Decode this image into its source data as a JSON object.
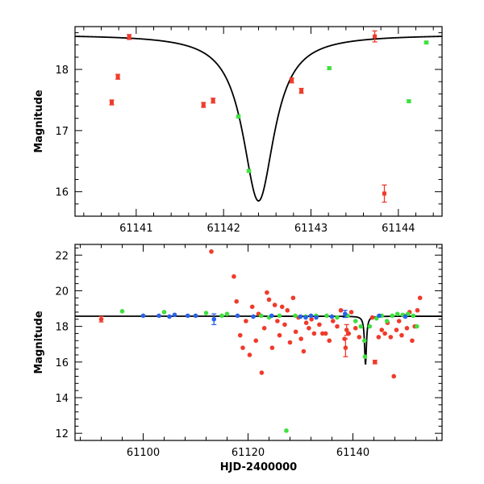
{
  "colors": {
    "red": "#f03a2a",
    "green": "#3ee03e",
    "blue": "#2a62e8",
    "axis": "#000000"
  },
  "chart_data": [
    {
      "type": "scatter",
      "title": "",
      "xlabel": "",
      "ylabel": "Magnitude",
      "xlim": [
        61140.3,
        61144.5
      ],
      "ylim": [
        18.7,
        15.6
      ],
      "y_inverted": true,
      "xticks": [
        61141,
        61142,
        61143,
        61144
      ],
      "xtick_labels": [
        "61141",
        "61142",
        "61143",
        "61144"
      ],
      "yticks": [
        16,
        17,
        18
      ],
      "ytick_labels": [
        "16",
        "17",
        "18"
      ],
      "model_curve": {
        "name": "model",
        "peak_x": 61142.4,
        "peak_mag": 15.85,
        "baseline_mag": 18.57,
        "width": 0.22
      },
      "series": [
        {
          "name": "red",
          "color_key": "red",
          "points": [
            {
              "x": 61140.72,
              "y": 17.46,
              "err": 0.04
            },
            {
              "x": 61140.79,
              "y": 17.88,
              "err": 0.04
            },
            {
              "x": 61140.92,
              "y": 18.53,
              "err": 0.04
            },
            {
              "x": 61141.77,
              "y": 17.42,
              "err": 0.04
            },
            {
              "x": 61141.88,
              "y": 17.49,
              "err": 0.04
            },
            {
              "x": 61142.78,
              "y": 17.82,
              "err": 0.04
            },
            {
              "x": 61142.89,
              "y": 17.65,
              "err": 0.04
            },
            {
              "x": 61143.73,
              "y": 18.54,
              "err": 0.09
            },
            {
              "x": 61143.84,
              "y": 15.97,
              "err": 0.14
            }
          ]
        },
        {
          "name": "green",
          "color_key": "green",
          "points": [
            {
              "x": 61142.17,
              "y": 17.23,
              "err": 0.02
            },
            {
              "x": 61142.29,
              "y": 16.34,
              "err": 0.02
            },
            {
              "x": 61143.21,
              "y": 18.02,
              "err": 0.02
            },
            {
              "x": 61144.12,
              "y": 17.48,
              "err": 0.02
            },
            {
              "x": 61144.32,
              "y": 18.44,
              "err": 0.02
            }
          ]
        }
      ]
    },
    {
      "type": "scatter",
      "title": "",
      "xlabel": "HJD-2400000",
      "ylabel": "Magnitude",
      "xlim": [
        61087,
        61157
      ],
      "ylim": [
        22.6,
        11.6
      ],
      "y_inverted": true,
      "xticks": [
        61100,
        61120,
        61140
      ],
      "xtick_labels": [
        "61100",
        "61120",
        "61140"
      ],
      "yticks": [
        12,
        14,
        16,
        18,
        20,
        22
      ],
      "ytick_labels": [
        "12",
        "14",
        "16",
        "18",
        "20",
        "22"
      ],
      "model_curve": {
        "name": "model",
        "peak_x": 61142.4,
        "peak_mag": 15.85,
        "baseline_mag": 18.57,
        "width": 0.22
      },
      "series": [
        {
          "name": "red",
          "color_key": "red",
          "points": [
            {
              "x": 61092,
              "y": 18.4,
              "err": 0.15
            },
            {
              "x": 61113,
              "y": 22.2,
              "err": 0
            },
            {
              "x": 61117.3,
              "y": 20.8,
              "err": 0
            },
            {
              "x": 61117.8,
              "y": 19.4,
              "err": 0
            },
            {
              "x": 61118.5,
              "y": 17.5,
              "err": 0
            },
            {
              "x": 61119.0,
              "y": 16.8,
              "err": 0
            },
            {
              "x": 61119.6,
              "y": 18.3,
              "err": 0
            },
            {
              "x": 61120.3,
              "y": 16.4,
              "err": 0
            },
            {
              "x": 61120.8,
              "y": 19.1,
              "err": 0
            },
            {
              "x": 61121.5,
              "y": 17.2,
              "err": 0
            },
            {
              "x": 61122.0,
              "y": 18.7,
              "err": 0
            },
            {
              "x": 61122.6,
              "y": 15.4,
              "err": 0
            },
            {
              "x": 61123.1,
              "y": 17.9,
              "err": 0
            },
            {
              "x": 61123.6,
              "y": 19.9,
              "err": 0
            },
            {
              "x": 61124.0,
              "y": 19.5,
              "err": 0
            },
            {
              "x": 61124.6,
              "y": 16.8,
              "err": 0
            },
            {
              "x": 61125.1,
              "y": 19.2,
              "err": 0
            },
            {
              "x": 61125.6,
              "y": 18.3,
              "err": 0
            },
            {
              "x": 61126.0,
              "y": 17.5,
              "err": 0
            },
            {
              "x": 61126.5,
              "y": 19.1,
              "err": 0
            },
            {
              "x": 61127.0,
              "y": 18.1,
              "err": 0
            },
            {
              "x": 61127.5,
              "y": 18.9,
              "err": 0
            },
            {
              "x": 61128.0,
              "y": 17.1,
              "err": 0
            },
            {
              "x": 61128.6,
              "y": 19.6,
              "err": 0
            },
            {
              "x": 61129.1,
              "y": 17.7,
              "err": 0
            },
            {
              "x": 61129.6,
              "y": 18.5,
              "err": 0
            },
            {
              "x": 61130.1,
              "y": 17.3,
              "err": 0
            },
            {
              "x": 61130.6,
              "y": 16.6,
              "err": 0
            },
            {
              "x": 61131.1,
              "y": 18.2,
              "err": 0
            },
            {
              "x": 61131.6,
              "y": 17.9,
              "err": 0
            },
            {
              "x": 61132.1,
              "y": 18.4,
              "err": 0
            },
            {
              "x": 61132.6,
              "y": 17.6,
              "err": 0
            },
            {
              "x": 61133.6,
              "y": 18.1,
              "err": 0
            },
            {
              "x": 61134.2,
              "y": 17.6,
              "err": 0
            },
            {
              "x": 61134.8,
              "y": 17.6,
              "err": 0
            },
            {
              "x": 61135.5,
              "y": 17.2,
              "err": 0
            },
            {
              "x": 61136.2,
              "y": 18.3,
              "err": 0
            },
            {
              "x": 61137.0,
              "y": 18.0,
              "err": 0
            },
            {
              "x": 61137.7,
              "y": 18.9,
              "err": 0
            },
            {
              "x": 61138.4,
              "y": 17.3,
              "err": 0
            },
            {
              "x": 61138.6,
              "y": 16.8,
              "err": 0.5
            },
            {
              "x": 61138.8,
              "y": 17.8,
              "err": 0.3
            },
            {
              "x": 61139.2,
              "y": 17.6,
              "err": 0
            },
            {
              "x": 61139.7,
              "y": 18.8,
              "err": 0
            },
            {
              "x": 61140.5,
              "y": 17.9,
              "err": 0
            },
            {
              "x": 61141.2,
              "y": 17.4,
              "err": 0
            },
            {
              "x": 61143.7,
              "y": 18.5,
              "err": 0
            },
            {
              "x": 61144.2,
              "y": 16.0,
              "err": 0.1
            },
            {
              "x": 61144.9,
              "y": 17.4,
              "err": 0
            },
            {
              "x": 61145.5,
              "y": 17.8,
              "err": 0
            },
            {
              "x": 61146.1,
              "y": 17.6,
              "err": 0
            },
            {
              "x": 61146.6,
              "y": 18.2,
              "err": 0
            },
            {
              "x": 61147.2,
              "y": 17.4,
              "err": 0
            },
            {
              "x": 61147.8,
              "y": 15.2,
              "err": 0
            },
            {
              "x": 61148.3,
              "y": 17.8,
              "err": 0
            },
            {
              "x": 61148.8,
              "y": 18.3,
              "err": 0
            },
            {
              "x": 61149.3,
              "y": 17.5,
              "err": 0
            },
            {
              "x": 61149.8,
              "y": 18.6,
              "err": 0
            },
            {
              "x": 61150.3,
              "y": 17.9,
              "err": 0
            },
            {
              "x": 61150.8,
              "y": 18.8,
              "err": 0
            },
            {
              "x": 61151.3,
              "y": 17.2,
              "err": 0
            },
            {
              "x": 61151.8,
              "y": 18.0,
              "err": 0
            },
            {
              "x": 61152.3,
              "y": 18.9,
              "err": 0
            },
            {
              "x": 61152.8,
              "y": 19.6,
              "err": 0
            }
          ]
        },
        {
          "name": "green",
          "color_key": "green",
          "points": [
            {
              "x": 61096,
              "y": 18.85,
              "err": 0
            },
            {
              "x": 61104,
              "y": 18.8,
              "err": 0
            },
            {
              "x": 61112,
              "y": 18.75,
              "err": 0
            },
            {
              "x": 61115,
              "y": 18.6,
              "err": 0
            },
            {
              "x": 61116,
              "y": 18.7,
              "err": 0
            },
            {
              "x": 61122.5,
              "y": 18.6,
              "err": 0
            },
            {
              "x": 61124,
              "y": 18.5,
              "err": 0
            },
            {
              "x": 61126,
              "y": 18.6,
              "err": 0
            },
            {
              "x": 61127.3,
              "y": 12.15,
              "err": 0
            },
            {
              "x": 61129,
              "y": 18.6,
              "err": 0
            },
            {
              "x": 61131,
              "y": 18.55,
              "err": 0
            },
            {
              "x": 61133,
              "y": 18.6,
              "err": 0
            },
            {
              "x": 61135,
              "y": 18.6,
              "err": 0
            },
            {
              "x": 61137,
              "y": 18.5,
              "err": 0
            },
            {
              "x": 61139,
              "y": 18.6,
              "err": 0
            },
            {
              "x": 61140.5,
              "y": 18.3,
              "err": 0
            },
            {
              "x": 61141.5,
              "y": 18.0,
              "err": 0
            },
            {
              "x": 61142.2,
              "y": 17.2,
              "err": 0
            },
            {
              "x": 61142.3,
              "y": 16.3,
              "err": 0
            },
            {
              "x": 61143.2,
              "y": 18.0,
              "err": 0
            },
            {
              "x": 61144.5,
              "y": 18.45,
              "err": 0
            },
            {
              "x": 61145.5,
              "y": 18.6,
              "err": 0
            },
            {
              "x": 61146.5,
              "y": 18.3,
              "err": 0
            },
            {
              "x": 61147.5,
              "y": 18.6,
              "err": 0
            },
            {
              "x": 61148.5,
              "y": 18.7,
              "err": 0
            },
            {
              "x": 61149.5,
              "y": 18.65,
              "err": 0
            },
            {
              "x": 61150.5,
              "y": 18.7,
              "err": 0
            },
            {
              "x": 61151.5,
              "y": 18.6,
              "err": 0
            },
            {
              "x": 61152.2,
              "y": 18.0,
              "err": 0
            }
          ]
        },
        {
          "name": "blue",
          "color_key": "blue",
          "points": [
            {
              "x": 61100,
              "y": 18.6,
              "err": 0
            },
            {
              "x": 61103,
              "y": 18.6,
              "err": 0
            },
            {
              "x": 61105,
              "y": 18.55,
              "err": 0
            },
            {
              "x": 61106,
              "y": 18.65,
              "err": 0
            },
            {
              "x": 61108.5,
              "y": 18.6,
              "err": 0
            },
            {
              "x": 61110,
              "y": 18.6,
              "err": 0
            },
            {
              "x": 61113.5,
              "y": 18.4,
              "err": 0.3
            },
            {
              "x": 61118,
              "y": 18.6,
              "err": 0
            },
            {
              "x": 61121,
              "y": 18.55,
              "err": 0
            },
            {
              "x": 61124.5,
              "y": 18.6,
              "err": 0
            },
            {
              "x": 61130,
              "y": 18.55,
              "err": 0
            },
            {
              "x": 61131,
              "y": 18.5,
              "err": 0
            },
            {
              "x": 61132,
              "y": 18.6,
              "err": 0
            },
            {
              "x": 61133,
              "y": 18.5,
              "err": 0
            },
            {
              "x": 61136,
              "y": 18.55,
              "err": 0
            },
            {
              "x": 61138.5,
              "y": 18.7,
              "err": 0.2
            },
            {
              "x": 61145,
              "y": 18.6,
              "err": 0
            },
            {
              "x": 61150,
              "y": 18.55,
              "err": 0
            }
          ]
        }
      ]
    }
  ]
}
